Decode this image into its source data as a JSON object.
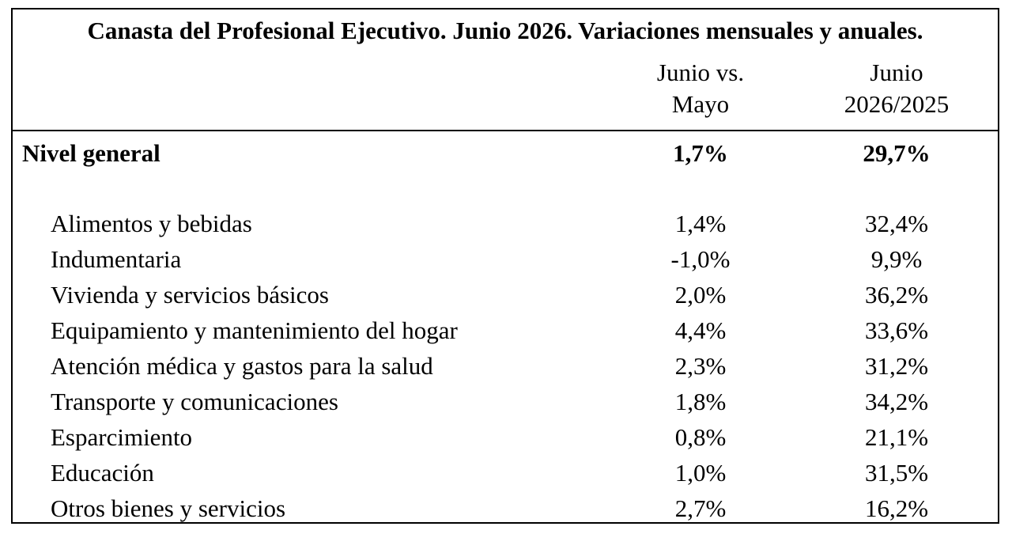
{
  "chart_data": {
    "type": "table",
    "title": "Canasta del Profesional Ejecutivo. Junio 2026. Variaciones mensuales y anuales.",
    "columns": [
      {
        "line1": "Junio vs.",
        "line2": "Mayo"
      },
      {
        "line1": "Junio",
        "line2": "2026/2025"
      }
    ],
    "general": {
      "label": "Nivel general",
      "monthly": "1,7%",
      "annual": "29,7%"
    },
    "rows": [
      {
        "label": "Alimentos y bebidas",
        "monthly": "1,4%",
        "annual": "32,4%"
      },
      {
        "label": "Indumentaria",
        "monthly": "-1,0%",
        "annual": "9,9%"
      },
      {
        "label": "Vivienda y servicios básicos",
        "monthly": "2,0%",
        "annual": "36,2%"
      },
      {
        "label": "Equipamiento y mantenimiento del hogar",
        "monthly": "4,4%",
        "annual": "33,6%"
      },
      {
        "label": "Atención médica y gastos para la salud",
        "monthly": "2,3%",
        "annual": "31,2%"
      },
      {
        "label": "Transporte y comunicaciones",
        "monthly": "1,8%",
        "annual": "34,2%"
      },
      {
        "label": "Esparcimiento",
        "monthly": "0,8%",
        "annual": "21,1%"
      },
      {
        "label": "Educación",
        "monthly": "1,0%",
        "annual": "31,5%"
      },
      {
        "label": "Otros bienes y servicios",
        "monthly": "2,7%",
        "annual": "16,2%"
      }
    ]
  }
}
